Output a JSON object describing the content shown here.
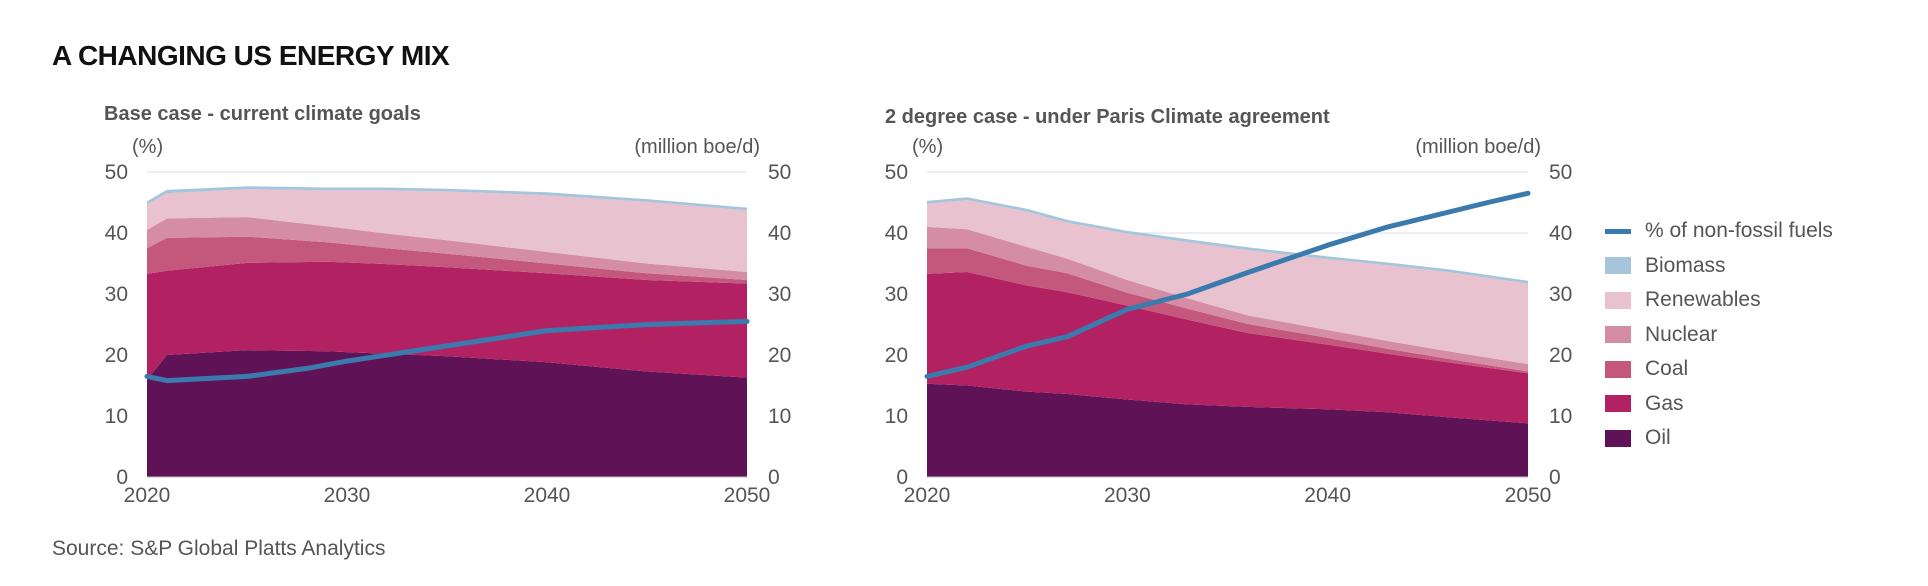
{
  "title": "A CHANGING US ENERGY MIX",
  "source": "Source: S&P Global Platts Analytics",
  "colors": {
    "oil": "#5f1356",
    "gas": "#b22263",
    "coal": "#c4577c",
    "nuclear": "#d48da5",
    "renewables": "#e8c2ce",
    "biomass": "#a6c5dc",
    "nonfossil": "#3a7aad",
    "grid": "#d6e2ec"
  },
  "legend": [
    {
      "key": "nonfossil",
      "label": "% of non-fossil fuels",
      "kind": "line",
      "icon": "line-icon"
    },
    {
      "key": "biomass",
      "label": "Biomass",
      "kind": "swatch",
      "icon": "swatch-icon"
    },
    {
      "key": "renewables",
      "label": "Renewables",
      "kind": "swatch",
      "icon": "swatch-icon"
    },
    {
      "key": "nuclear",
      "label": "Nuclear",
      "kind": "swatch",
      "icon": "swatch-icon"
    },
    {
      "key": "coal",
      "label": "Coal",
      "kind": "swatch",
      "icon": "swatch-icon"
    },
    {
      "key": "gas",
      "label": "Gas",
      "kind": "swatch",
      "icon": "swatch-icon"
    },
    {
      "key": "oil",
      "label": "Oil",
      "kind": "swatch",
      "icon": "swatch-icon"
    }
  ],
  "chart_data": [
    {
      "type": "area",
      "title": "Base case - current climate goals",
      "ylabel_left": "(%)",
      "ylabel_right": "(million boe/d)",
      "xlim": [
        2020,
        2050
      ],
      "ylim": [
        0,
        50
      ],
      "xticks": [
        "2020",
        "2030",
        "2040",
        "2050"
      ],
      "yticks": [
        "0",
        "10",
        "20",
        "30",
        "40",
        "50"
      ],
      "legend": "right",
      "grid": true,
      "x": [
        2020,
        2021,
        2025,
        2029,
        2032,
        2035,
        2040,
        2045,
        2050
      ],
      "stack_order": [
        "oil",
        "gas",
        "coal",
        "nuclear",
        "renewables",
        "biomass"
      ],
      "series": [
        {
          "name": "Oil",
          "key": "oil",
          "values": [
            16.0,
            20.0,
            20.8,
            20.6,
            20.2,
            19.8,
            18.8,
            17.3,
            16.3
          ]
        },
        {
          "name": "Gas",
          "key": "gas",
          "values": [
            17.3,
            13.8,
            14.3,
            14.7,
            14.7,
            14.6,
            14.6,
            15.0,
            15.4
          ]
        },
        {
          "name": "Coal",
          "key": "coal",
          "values": [
            4.2,
            5.4,
            4.3,
            3.2,
            2.6,
            2.2,
            1.6,
            1.1,
            0.6
          ]
        },
        {
          "name": "Nuclear",
          "key": "nuclear",
          "values": [
            3.0,
            3.2,
            3.2,
            2.6,
            2.4,
            2.2,
            1.9,
            1.6,
            1.3
          ]
        },
        {
          "name": "Renewables",
          "key": "renewables",
          "values": [
            4.2,
            4.1,
            4.6,
            5.9,
            7.1,
            8.0,
            9.3,
            10.1,
            10.1
          ]
        },
        {
          "name": "Biomass",
          "key": "biomass",
          "values": [
            0.3,
            0.4,
            0.3,
            0.3,
            0.3,
            0.3,
            0.3,
            0.3,
            0.3
          ]
        }
      ],
      "line": {
        "name": "% of non-fossil fuels",
        "key": "nonfossil",
        "x": [
          2020,
          2021,
          2025,
          2028,
          2030,
          2035,
          2040,
          2045,
          2050
        ],
        "values": [
          16.5,
          15.8,
          16.5,
          17.8,
          19.0,
          21.5,
          24.0,
          25.0,
          25.5
        ]
      }
    },
    {
      "type": "area",
      "title": "2 degree case - under Paris Climate agreement",
      "ylabel_left": "(%)",
      "ylabel_right": "(million boe/d)",
      "xlim": [
        2020,
        2050
      ],
      "ylim": [
        0,
        50
      ],
      "xticks": [
        "2020",
        "2030",
        "2040",
        "2050"
      ],
      "yticks": [
        "0",
        "10",
        "20",
        "30",
        "40",
        "50"
      ],
      "legend": "right",
      "grid": true,
      "x": [
        2020,
        2022,
        2025,
        2027,
        2030,
        2033,
        2036,
        2040,
        2043,
        2046,
        2050
      ],
      "stack_order": [
        "oil",
        "gas",
        "coal",
        "nuclear",
        "renewables",
        "biomass"
      ],
      "series": [
        {
          "name": "Oil",
          "key": "oil",
          "values": [
            15.3,
            15.0,
            14.0,
            13.6,
            12.7,
            11.9,
            11.5,
            11.1,
            10.6,
            9.8,
            8.8
          ]
        },
        {
          "name": "Gas",
          "key": "gas",
          "values": [
            18.0,
            18.6,
            17.4,
            16.7,
            15.4,
            13.9,
            12.1,
            10.6,
            9.6,
            9.0,
            8.2
          ]
        },
        {
          "name": "Coal",
          "key": "coal",
          "values": [
            4.2,
            3.9,
            3.2,
            3.1,
            2.1,
            1.8,
            1.5,
            1.1,
            0.8,
            0.6,
            0.3
          ]
        },
        {
          "name": "Nuclear",
          "key": "nuclear",
          "values": [
            3.5,
            3.1,
            3.1,
            2.4,
            2.1,
            1.7,
            1.4,
            1.3,
            1.3,
            1.2,
            1.2
          ]
        },
        {
          "name": "Renewables",
          "key": "renewables",
          "values": [
            3.8,
            4.8,
            5.8,
            5.9,
            7.6,
            9.2,
            10.7,
            11.6,
            12.4,
            13.0,
            13.2
          ]
        },
        {
          "name": "Biomass",
          "key": "biomass",
          "values": [
            0.3,
            0.3,
            0.3,
            0.3,
            0.3,
            0.3,
            0.3,
            0.3,
            0.3,
            0.3,
            0.3
          ]
        }
      ],
      "line": {
        "name": "% of non-fossil fuels",
        "key": "nonfossil",
        "x": [
          2020,
          2022,
          2025,
          2027,
          2030,
          2033,
          2036,
          2040,
          2043,
          2048,
          2050
        ],
        "values": [
          16.5,
          18.0,
          21.5,
          23.0,
          27.5,
          30.0,
          33.5,
          38.0,
          41.0,
          45.0,
          46.5
        ]
      }
    }
  ]
}
